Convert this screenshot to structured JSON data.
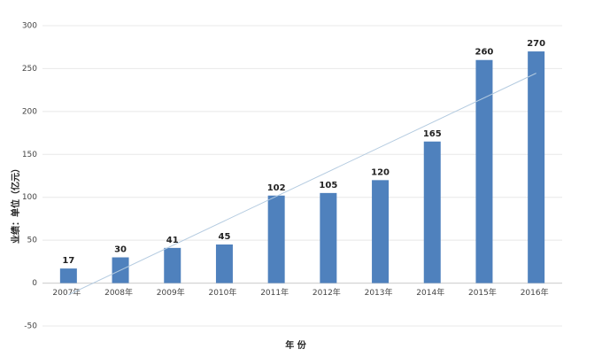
{
  "chart_data": {
    "type": "bar",
    "y_label": "业绩：单位（亿元）",
    "x_label": "年 份",
    "categories": [
      "2007年",
      "2008年",
      "2009年",
      "2010年",
      "2011年",
      "2012年",
      "2013年",
      "2014年",
      "2015年",
      "2016年"
    ],
    "values": [
      17,
      30,
      41,
      45,
      102,
      105,
      120,
      165,
      260,
      270
    ],
    "color": "#4f81bd",
    "ylim": [
      -50,
      300
    ],
    "yticks": [
      -50,
      0,
      50,
      100,
      150,
      200,
      250,
      300
    ],
    "grid": true,
    "trendline": true,
    "trendline_color": "#b4cbe0"
  }
}
